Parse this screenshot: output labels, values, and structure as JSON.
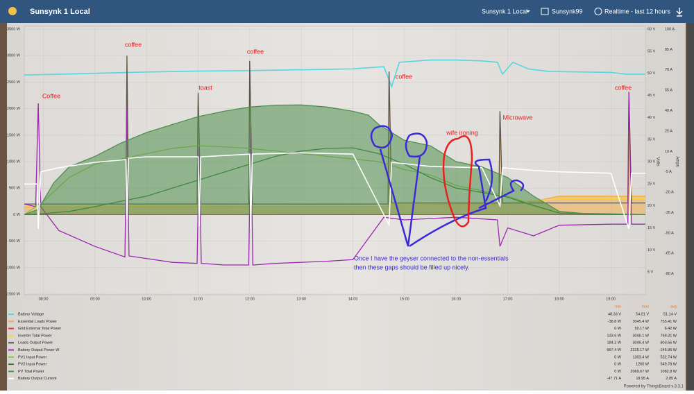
{
  "header": {
    "title": "Sunsynk 1 Local",
    "dashboard": "Sunsynk 1 Local",
    "device": "Sunsynk99",
    "timewindow": "Realtime - last 12 hours"
  },
  "chart_data": {
    "type": "line",
    "xlim": [
      7.63,
      19.67
    ],
    "xticks": [
      {
        "value": 8,
        "label": "08:00"
      },
      {
        "value": 9,
        "label": "09:00"
      },
      {
        "value": 10,
        "label": "10:00"
      },
      {
        "value": 11,
        "label": "11:00"
      },
      {
        "value": 12,
        "label": "12:00"
      },
      {
        "value": 13,
        "label": "13:00"
      },
      {
        "value": 14,
        "label": "14:00"
      },
      {
        "value": 15,
        "label": "15:00"
      },
      {
        "value": 16,
        "label": "16:00"
      },
      {
        "value": 17,
        "label": "17:00"
      },
      {
        "value": 18,
        "label": "18:00"
      },
      {
        "value": 19,
        "label": "19:00"
      }
    ],
    "ylim": [
      -1500,
      3500
    ],
    "yticks": [
      {
        "value": 3500,
        "label": "3500 W"
      },
      {
        "value": 3000,
        "label": "3000 W"
      },
      {
        "value": 2500,
        "label": "2500 W"
      },
      {
        "value": 2000,
        "label": "2000 W"
      },
      {
        "value": 1500,
        "label": "1500 W"
      },
      {
        "value": 1000,
        "label": "1000 W"
      },
      {
        "value": 500,
        "label": "500 W"
      },
      {
        "value": 0,
        "label": "0 W"
      },
      {
        "value": -500,
        "label": "-500 W"
      },
      {
        "value": -1000,
        "label": "-1000 W"
      },
      {
        "value": -1500,
        "label": "-1500 W"
      }
    ],
    "y2label": "Volts",
    "y2lim": [
      0,
      60
    ],
    "y2ticks": [
      {
        "value": 60,
        "label": "60 V"
      },
      {
        "value": 55,
        "label": "55 V"
      },
      {
        "value": 50,
        "label": "50 V"
      },
      {
        "value": 45,
        "label": "45 V"
      },
      {
        "value": 40,
        "label": "40 V"
      },
      {
        "value": 35,
        "label": "35 V"
      },
      {
        "value": 30,
        "label": "30 V"
      },
      {
        "value": 25,
        "label": "25 V"
      },
      {
        "value": 20,
        "label": "20 V"
      },
      {
        "value": 15,
        "label": "15 V"
      },
      {
        "value": 10,
        "label": "10 V"
      },
      {
        "value": 5,
        "label": "5 V"
      }
    ],
    "y3label": "Amps",
    "y3lim": [
      -95,
      100
    ],
    "y3ticks": [
      {
        "value": 100,
        "label": "100 A"
      },
      {
        "value": 85,
        "label": "85 A"
      },
      {
        "value": 70,
        "label": "70 A"
      },
      {
        "value": 55,
        "label": "55 A"
      },
      {
        "value": 40,
        "label": "40 A"
      },
      {
        "value": 25,
        "label": "25 A"
      },
      {
        "value": 10,
        "label": "10 A"
      },
      {
        "value": -5,
        "label": "-5 A"
      },
      {
        "value": -20,
        "label": "-20 A"
      },
      {
        "value": -35,
        "label": "-35 A"
      },
      {
        "value": -50,
        "label": "-50 A"
      },
      {
        "value": -65,
        "label": "-65 A"
      },
      {
        "value": -80,
        "label": "-80 A"
      }
    ],
    "grid": true,
    "stat_headers": [
      "min",
      "max",
      "avg"
    ],
    "series": [
      {
        "name": "Battery Voltage",
        "color": "#55d6e0",
        "axis": "y2",
        "stats": [
          "48.33 V",
          "54.01 V",
          "51.14 V"
        ],
        "x": [
          7.63,
          9,
          10,
          11,
          12,
          13,
          14,
          14.6,
          14.75,
          14.9,
          15.5,
          16,
          16.5,
          16.8,
          16.9,
          17.1,
          17.4,
          17.8,
          18.5,
          19,
          19.3,
          19.67
        ],
        "values": [
          49.6,
          50,
          50.3,
          50.5,
          50.6,
          50.8,
          51,
          51.5,
          47,
          52.5,
          53,
          53,
          52.8,
          52.5,
          49.8,
          52.5,
          51,
          50.4,
          50.3,
          50.2,
          49.8,
          49.8
        ]
      },
      {
        "name": "Essential Loads Power",
        "color": "#f0ad4e",
        "area": true,
        "stats": [
          "-38.8 W",
          "3045.4 W",
          "755.41 W"
        ],
        "x": [
          7.63,
          9.6,
          9.62,
          9.65,
          10.98,
          11,
          11.05,
          11.98,
          12,
          12.05,
          14.68,
          14.7,
          14.75,
          16.83,
          16.85,
          16.9,
          17.5,
          18,
          19,
          19.33,
          19.35,
          19.4,
          19.67
        ],
        "values": [
          150,
          150,
          2950,
          150,
          150,
          2250,
          150,
          150,
          2900,
          150,
          150,
          2700,
          200,
          200,
          1950,
          200,
          250,
          350,
          350,
          350,
          2300,
          350,
          350
        ]
      },
      {
        "name": "Grid External Total Power",
        "color": "#e53935",
        "stats": [
          "0 W",
          "50.17 W",
          "6.42 W"
        ],
        "x": [
          7.63,
          19.67
        ],
        "values": [
          0,
          0
        ]
      },
      {
        "name": "Inverter Total Power",
        "color": "#fdd835",
        "stats": [
          "133.6 W",
          "3046.1 W",
          "799.31 W"
        ],
        "x": [
          7.63,
          9.6,
          9.62,
          9.65,
          12,
          14.7,
          16.85,
          18,
          19.67
        ],
        "values": [
          160,
          160,
          2950,
          170,
          180,
          200,
          220,
          300,
          300
        ]
      },
      {
        "name": "Loads Output Power",
        "color": "#555555",
        "stats": [
          "184.2 W",
          "3046.4 W",
          "803.65 W"
        ],
        "x": [
          7.63,
          9.6,
          9.62,
          9.65,
          10.98,
          11,
          11.05,
          11.98,
          12,
          12.05,
          14.68,
          14.7,
          14.75,
          16.83,
          16.85,
          16.9,
          19.33,
          19.35,
          19.4,
          19.67
        ],
        "values": [
          200,
          200,
          3000,
          200,
          200,
          2300,
          200,
          200,
          2900,
          200,
          200,
          2700,
          220,
          220,
          1950,
          220,
          220,
          2300,
          220,
          220
        ]
      },
      {
        "name": "Battery Output Power W",
        "color": "#9c27b0",
        "stats": [
          "-967.4 W",
          "2315.17 W",
          "-146.96 W"
        ],
        "x": [
          7.63,
          7.85,
          7.9,
          7.95,
          8.3,
          9,
          9.58,
          9.62,
          9.66,
          10.5,
          10.98,
          11.02,
          11.06,
          11.5,
          11.98,
          12.02,
          12.06,
          12.5,
          13.5,
          14,
          14.6,
          15,
          16,
          16.8,
          16.85,
          17,
          17.5,
          18,
          19,
          19.33,
          19.35,
          19.4,
          19.67
        ],
        "values": [
          200,
          150,
          2100,
          150,
          -300,
          -600,
          -800,
          2000,
          -780,
          -900,
          -920,
          1300,
          -920,
          -950,
          -950,
          1700,
          -950,
          -920,
          -880,
          -850,
          -50,
          -100,
          -50,
          -100,
          -600,
          -250,
          -400,
          -200,
          -180,
          -180,
          2315,
          -180,
          -180
        ]
      },
      {
        "name": "PV1 Input Power",
        "color": "#8bc34a",
        "stats": [
          "0 W",
          "1303.4 W",
          "532.74 W"
        ],
        "x": [
          7.63,
          8,
          8.5,
          9,
          9.5,
          10,
          10.5,
          11,
          11.5,
          12,
          12.5,
          13,
          13.5,
          14,
          14.5,
          15,
          15.5,
          16,
          16.5,
          17,
          17.5,
          18,
          19.67
        ],
        "values": [
          0,
          250,
          700,
          950,
          1050,
          1150,
          1250,
          1300,
          1280,
          1250,
          1200,
          1150,
          1100,
          1050,
          1000,
          850,
          750,
          550,
          450,
          350,
          180,
          30,
          0
        ]
      },
      {
        "name": "PV2 Input Power",
        "color": "#2e7d32",
        "stats": [
          "0 W",
          "1260 W",
          "549.78 W"
        ],
        "x": [
          7.63,
          8,
          8.5,
          9,
          9.5,
          10,
          10.5,
          11,
          11.5,
          12,
          12.5,
          13,
          13.5,
          14,
          14.5,
          15,
          15.5,
          16,
          16.5,
          17,
          17.5,
          18,
          19.67
        ],
        "values": [
          0,
          20,
          60,
          150,
          250,
          350,
          500,
          650,
          800,
          950,
          1100,
          1200,
          1250,
          1260,
          1150,
          950,
          700,
          500,
          420,
          330,
          170,
          30,
          0
        ]
      },
      {
        "name": "PV Total Power",
        "color": "#4e8f4e",
        "area": true,
        "stats": [
          "0 W",
          "2069.67 W",
          "1082.8 W"
        ],
        "x": [
          7.63,
          7.9,
          8.2,
          8.5,
          9,
          9.5,
          10,
          10.5,
          11,
          11.5,
          12,
          12.5,
          13,
          13.5,
          14,
          14.3,
          14.5,
          15,
          15.5,
          16,
          16.5,
          17,
          17.5,
          18,
          18.5,
          19,
          19.67
        ],
        "values": [
          0,
          100,
          600,
          900,
          1100,
          1350,
          1550,
          1700,
          1850,
          1950,
          2030,
          2065,
          2070,
          2030,
          1950,
          1880,
          1700,
          1400,
          1300,
          1000,
          900,
          700,
          350,
          60,
          20,
          0,
          0
        ]
      },
      {
        "name": "Battery Output Current",
        "color": "#ffffff",
        "axis": "y3",
        "stats": [
          "-47.71 A",
          "18.95 A",
          "2.85 A"
        ],
        "x": [
          7.63,
          7.88,
          7.9,
          7.95,
          8.3,
          9,
          9.6,
          9.62,
          9.65,
          10,
          11,
          11.02,
          11.05,
          12,
          12.02,
          12.05,
          13,
          14,
          14.7,
          14.75,
          15.5,
          16.5,
          16.85,
          16.9,
          17.5,
          18,
          19,
          19.35,
          19.4,
          19.67
        ],
        "values": [
          -14,
          -14,
          -47,
          -5,
          -2,
          2,
          4,
          -40,
          5,
          6,
          6,
          -45,
          6,
          8,
          -47,
          8,
          9,
          8,
          -44,
          2,
          -1,
          -2,
          -30,
          -2,
          -4,
          -5,
          -6,
          -47,
          -6,
          -6
        ]
      }
    ],
    "annotations": [
      "Coffee",
      "coffee",
      "toast",
      "coffee",
      "coffee",
      "coffee",
      "Microwave",
      "wife ironing"
    ],
    "note": [
      "Once I have the geyser connected to the non-essentials",
      "then these gaps should be filled up nicely."
    ]
  },
  "footer": "Powered by ThingsBoard v.3.3.1"
}
